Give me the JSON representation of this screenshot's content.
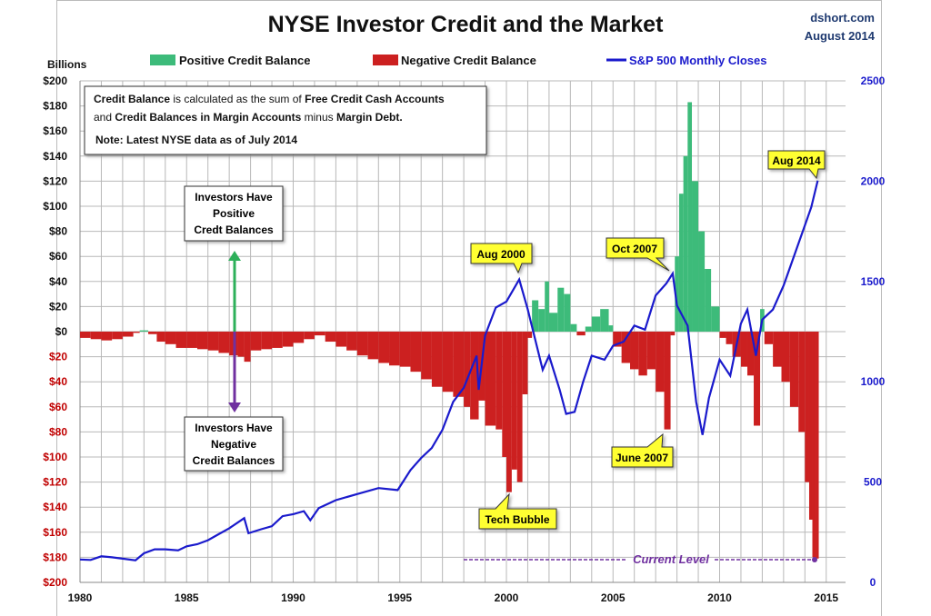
{
  "chart_data": {
    "type": "bar+line",
    "title": "NYSE Investor Credit and the Market",
    "source": "dshort.com",
    "date_label": "August 2014",
    "ylabel_left": "Billions",
    "ylim_left": [
      -200,
      200
    ],
    "ylim_right": [
      0,
      2500
    ],
    "xlim": [
      1980,
      2015
    ],
    "x_ticks": [
      "1980",
      "1985",
      "1990",
      "1995",
      "2000",
      "2005",
      "2010",
      "2015"
    ],
    "y_ticks_left": [
      "$200",
      "$180",
      "$160",
      "$140",
      "$120",
      "$100",
      "$80",
      "$60",
      "$40",
      "$20",
      "$0",
      "$20",
      "$40",
      "$60",
      "$80",
      "$100",
      "$120",
      "$140",
      "$160",
      "$180",
      "$200"
    ],
    "y_ticks_right": [
      "2500",
      "2000",
      "1500",
      "1000",
      "500",
      "0"
    ],
    "grid": true,
    "legend": {
      "placement": "top",
      "positive": "Positive Credit Balance",
      "negative": "Negative Credit Balance",
      "sp500": "S&P 500 Monthly Closes"
    },
    "colors": {
      "positive": "#3dbb7a",
      "negative": "#cc2020",
      "sp500": "#1a1acc",
      "callout": "#ffff33",
      "current": "#7030a0",
      "arrow_up": "#2db05a"
    },
    "credit_balance": [
      [
        1980,
        -5
      ],
      [
        1980.5,
        -6
      ],
      [
        1981,
        -7
      ],
      [
        1981.5,
        -6
      ],
      [
        1982,
        -4
      ],
      [
        1982.5,
        -1
      ],
      [
        1982.8,
        1
      ],
      [
        1983.2,
        -2
      ],
      [
        1983.6,
        -8
      ],
      [
        1984,
        -10
      ],
      [
        1984.5,
        -13
      ],
      [
        1985,
        -13
      ],
      [
        1985.5,
        -14
      ],
      [
        1986,
        -15
      ],
      [
        1986.5,
        -17
      ],
      [
        1987,
        -19
      ],
      [
        1987.4,
        -20
      ],
      [
        1987.7,
        -24
      ],
      [
        1988,
        -15
      ],
      [
        1988.5,
        -14
      ],
      [
        1989,
        -13
      ],
      [
        1989.5,
        -12
      ],
      [
        1990,
        -9
      ],
      [
        1990.5,
        -6
      ],
      [
        1991,
        -3
      ],
      [
        1991.5,
        -8
      ],
      [
        1992,
        -12
      ],
      [
        1992.5,
        -15
      ],
      [
        1993,
        -19
      ],
      [
        1993.5,
        -22
      ],
      [
        1994,
        -25
      ],
      [
        1994.5,
        -27
      ],
      [
        1995,
        -28
      ],
      [
        1995.5,
        -32
      ],
      [
        1996,
        -38
      ],
      [
        1996.5,
        -44
      ],
      [
        1997,
        -48
      ],
      [
        1997.5,
        -52
      ],
      [
        1998,
        -60
      ],
      [
        1998.3,
        -70
      ],
      [
        1998.7,
        -55
      ],
      [
        1999,
        -75
      ],
      [
        1999.5,
        -78
      ],
      [
        1999.8,
        -100
      ],
      [
        2000,
        -128
      ],
      [
        2000.25,
        -110
      ],
      [
        2000.5,
        -120
      ],
      [
        2000.75,
        -50
      ],
      [
        2001,
        -5
      ],
      [
        2001.2,
        25
      ],
      [
        2001.5,
        18
      ],
      [
        2001.8,
        40
      ],
      [
        2002,
        15
      ],
      [
        2002.4,
        35
      ],
      [
        2002.7,
        30
      ],
      [
        2003,
        6
      ],
      [
        2003.3,
        -3
      ],
      [
        2003.7,
        4
      ],
      [
        2004,
        12
      ],
      [
        2004.4,
        18
      ],
      [
        2004.8,
        5
      ],
      [
        2005,
        -12
      ],
      [
        2005.4,
        -25
      ],
      [
        2005.8,
        -30
      ],
      [
        2006.2,
        -35
      ],
      [
        2006.6,
        -30
      ],
      [
        2007,
        -48
      ],
      [
        2007.4,
        -78
      ],
      [
        2007.7,
        -3
      ],
      [
        2007.9,
        60
      ],
      [
        2008.1,
        110
      ],
      [
        2008.3,
        140
      ],
      [
        2008.5,
        183
      ],
      [
        2008.7,
        120
      ],
      [
        2009,
        80
      ],
      [
        2009.3,
        50
      ],
      [
        2009.6,
        20
      ],
      [
        2010,
        -5
      ],
      [
        2010.3,
        -10
      ],
      [
        2010.6,
        -20
      ],
      [
        2011,
        -28
      ],
      [
        2011.3,
        -35
      ],
      [
        2011.6,
        -75
      ],
      [
        2011.9,
        18
      ],
      [
        2012.1,
        -10
      ],
      [
        2012.5,
        -28
      ],
      [
        2012.9,
        -40
      ],
      [
        2013.3,
        -60
      ],
      [
        2013.7,
        -80
      ],
      [
        2014,
        -120
      ],
      [
        2014.2,
        -150
      ],
      [
        2014.35,
        -180
      ],
      [
        2014.5,
        -181
      ]
    ],
    "sp500": [
      [
        1980,
        114
      ],
      [
        1980.5,
        112
      ],
      [
        1981,
        130
      ],
      [
        1981.5,
        125
      ],
      [
        1982,
        118
      ],
      [
        1982.6,
        110
      ],
      [
        1983,
        145
      ],
      [
        1983.5,
        165
      ],
      [
        1984,
        165
      ],
      [
        1984.6,
        160
      ],
      [
        1985,
        180
      ],
      [
        1985.5,
        190
      ],
      [
        1986,
        210
      ],
      [
        1986.5,
        240
      ],
      [
        1987,
        270
      ],
      [
        1987.7,
        320
      ],
      [
        1987.9,
        245
      ],
      [
        1988.5,
        265
      ],
      [
        1989,
        280
      ],
      [
        1989.5,
        330
      ],
      [
        1990,
        340
      ],
      [
        1990.5,
        355
      ],
      [
        1990.8,
        310
      ],
      [
        1991.2,
        370
      ],
      [
        1992,
        410
      ],
      [
        1993,
        440
      ],
      [
        1994,
        470
      ],
      [
        1994.9,
        460
      ],
      [
        1995.5,
        560
      ],
      [
        1996,
        620
      ],
      [
        1996.5,
        670
      ],
      [
        1997,
        760
      ],
      [
        1997.5,
        900
      ],
      [
        1998,
        970
      ],
      [
        1998.6,
        1130
      ],
      [
        1998.7,
        960
      ],
      [
        1999,
        1230
      ],
      [
        1999.5,
        1370
      ],
      [
        2000,
        1400
      ],
      [
        2000.6,
        1510
      ],
      [
        2001,
        1360
      ],
      [
        2001.7,
        1060
      ],
      [
        2002,
        1130
      ],
      [
        2002.5,
        960
      ],
      [
        2002.8,
        840
      ],
      [
        2003.2,
        850
      ],
      [
        2003.6,
        1000
      ],
      [
        2004,
        1130
      ],
      [
        2004.6,
        1110
      ],
      [
        2005,
        1180
      ],
      [
        2005.5,
        1200
      ],
      [
        2006,
        1280
      ],
      [
        2006.5,
        1260
      ],
      [
        2007,
        1430
      ],
      [
        2007.5,
        1490
      ],
      [
        2007.8,
        1540
      ],
      [
        2008,
        1380
      ],
      [
        2008.5,
        1280
      ],
      [
        2008.9,
        900
      ],
      [
        2009.2,
        735
      ],
      [
        2009.5,
        920
      ],
      [
        2010,
        1110
      ],
      [
        2010.5,
        1030
      ],
      [
        2011,
        1290
      ],
      [
        2011.3,
        1360
      ],
      [
        2011.7,
        1130
      ],
      [
        2012,
        1310
      ],
      [
        2012.5,
        1360
      ],
      [
        2013,
        1480
      ],
      [
        2013.5,
        1630
      ],
      [
        2014,
        1780
      ],
      [
        2014.3,
        1870
      ],
      [
        2014.6,
        2003
      ]
    ],
    "annotations": {
      "note_line1": [
        "Credit Balance",
        " is calculated as the sum of ",
        "Free Credit Cash Accounts"
      ],
      "note_line2": [
        "and ",
        "Credit Balances in Margin Accounts",
        " minus ",
        "Margin Debt."
      ],
      "note_line3": "Note: Latest NYSE data as of July 2014",
      "positive_box": [
        "Investors Have",
        "Positive",
        "Credt Balances"
      ],
      "negative_box": [
        "Investors Have",
        "Negative",
        "Credit Balances"
      ],
      "aug2000": "Aug 2000",
      "oct2007": "Oct 2007",
      "aug2014": "Aug 2014",
      "tech_bubble": "Tech Bubble",
      "june2007": "June 2007",
      "current_level": "Current Level"
    }
  }
}
